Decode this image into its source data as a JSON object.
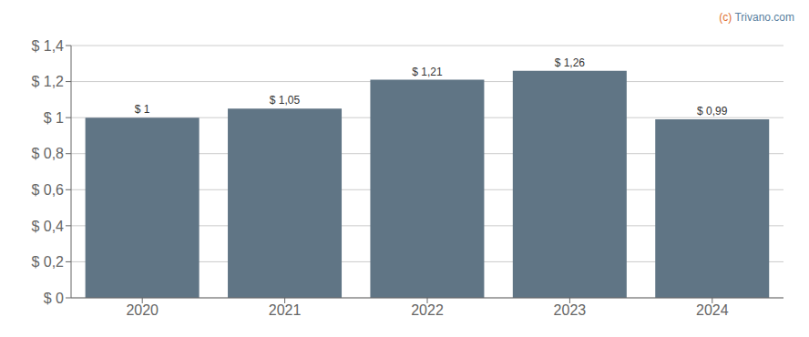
{
  "chart_data": {
    "type": "bar",
    "categories": [
      "2020",
      "2021",
      "2022",
      "2023",
      "2024"
    ],
    "values": [
      1.0,
      1.05,
      1.21,
      1.26,
      0.99
    ],
    "value_labels": [
      "$ 1",
      "$ 1,05",
      "$ 1,21",
      "$ 1,26",
      "$ 0,99"
    ],
    "data_labels": true,
    "color": "#607585",
    "ylim": [
      0,
      1.4
    ],
    "yticks": [
      {
        "value": 0,
        "label": "$ 0"
      },
      {
        "value": 0.2,
        "label": "$ 0,2"
      },
      {
        "value": 0.4,
        "label": "$ 0,4"
      },
      {
        "value": 0.6,
        "label": "$ 0,6"
      },
      {
        "value": 0.8,
        "label": "$ 0,8"
      },
      {
        "value": 1.0,
        "label": "$ 1"
      },
      {
        "value": 1.2,
        "label": "$ 1,2"
      },
      {
        "value": 1.4,
        "label": "$ 1,4"
      }
    ],
    "grid": true,
    "annotations": [
      {
        "text": "(c)",
        "color": "#e07030"
      },
      {
        "text": " Trivano.com",
        "color": "#5a7fa0"
      }
    ]
  }
}
